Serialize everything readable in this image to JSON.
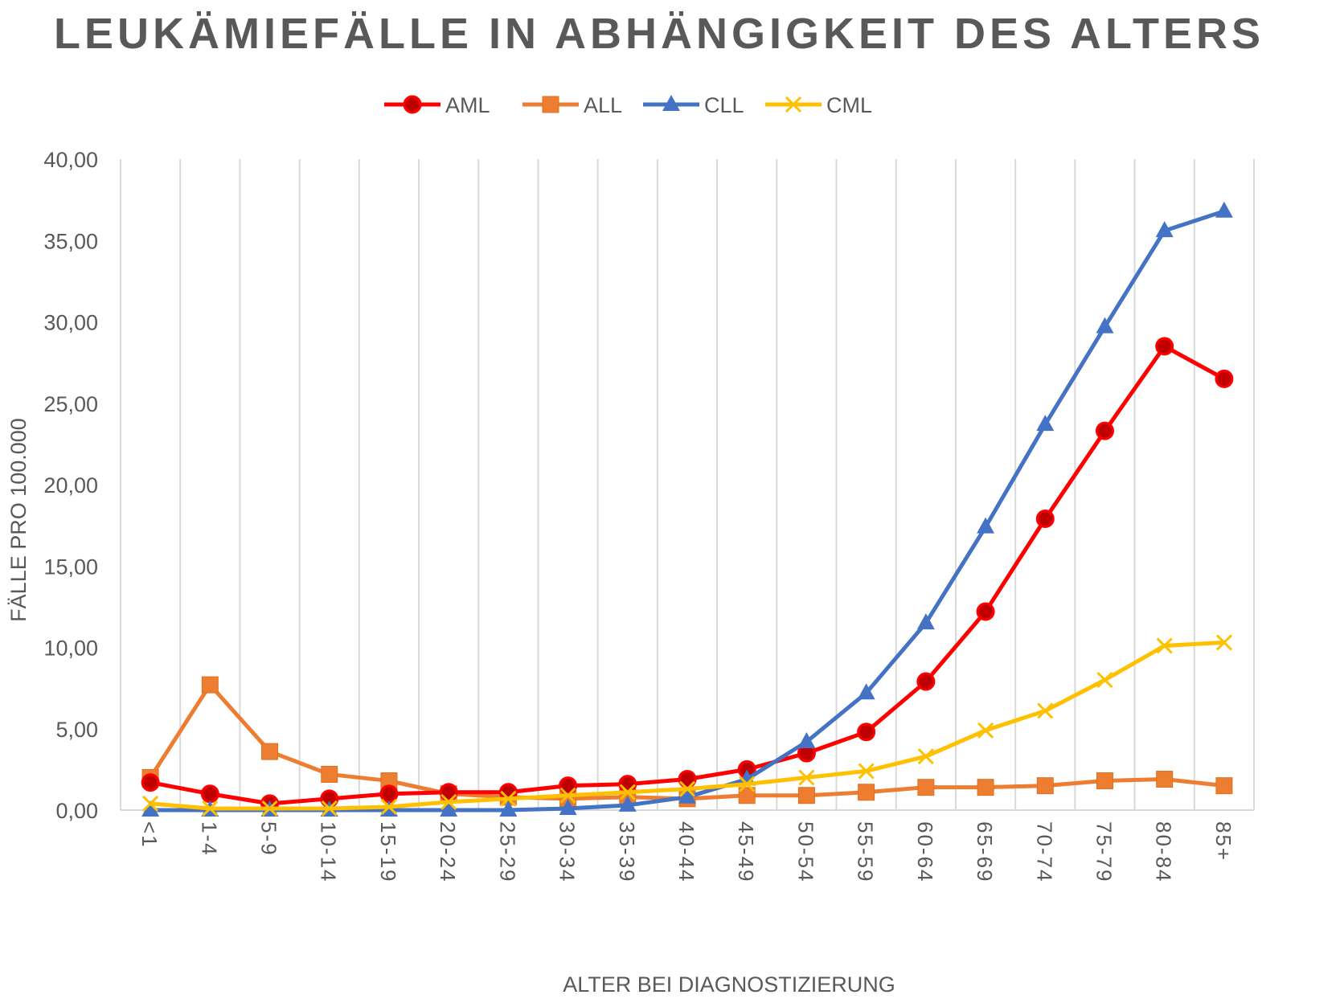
{
  "chart_data": {
    "type": "line",
    "title": "LEUKÄMIEFÄLLE IN ABHÄNGIGKEIT DES ALTERS",
    "xlabel": "ALTER BEI DIAGNOSTIZIERUNG",
    "ylabel": "FÄLLE PRO 100.000",
    "ylim": [
      0,
      40
    ],
    "y_ticks": [
      "0,00",
      "5,00",
      "10,00",
      "15,00",
      "20,00",
      "25,00",
      "30,00",
      "35,00",
      "40,00"
    ],
    "grid": "vertical",
    "legend_position": "top",
    "categories": [
      "<1",
      "1-4",
      "5-9",
      "10-14",
      "15-19",
      "20-24",
      "25-29",
      "30-34",
      "35-39",
      "40-44",
      "45-49",
      "50-54",
      "55-59",
      "60-64",
      "65-69",
      "70-74",
      "75-79",
      "80-84",
      "85+"
    ],
    "series": [
      {
        "name": "AML",
        "color": "#ff0000",
        "marker": "circle",
        "values": [
          1.7,
          1.0,
          0.4,
          0.7,
          1.0,
          1.1,
          1.1,
          1.5,
          1.6,
          1.9,
          2.5,
          3.5,
          4.8,
          7.9,
          12.2,
          17.9,
          23.3,
          28.5,
          26.5
        ]
      },
      {
        "name": "ALL",
        "color": "#ed7d31",
        "marker": "square",
        "values": [
          2.0,
          7.7,
          3.6,
          2.2,
          1.8,
          1.0,
          0.8,
          0.7,
          0.8,
          0.7,
          0.9,
          0.9,
          1.1,
          1.4,
          1.4,
          1.5,
          1.8,
          1.9,
          1.5
        ]
      },
      {
        "name": "CLL",
        "color": "#4472c4",
        "marker": "triangle",
        "values": [
          0.0,
          0.0,
          0.0,
          0.0,
          0.0,
          0.0,
          0.0,
          0.1,
          0.3,
          0.8,
          1.9,
          4.2,
          7.2,
          11.5,
          17.4,
          23.7,
          29.7,
          35.6,
          36.8
        ]
      },
      {
        "name": "CML",
        "color": "#ffc000",
        "marker": "x",
        "values": [
          0.4,
          0.1,
          0.1,
          0.1,
          0.2,
          0.5,
          0.7,
          0.9,
          1.1,
          1.3,
          1.6,
          2.0,
          2.4,
          3.3,
          4.9,
          6.1,
          8.0,
          10.1,
          10.3
        ]
      }
    ]
  }
}
